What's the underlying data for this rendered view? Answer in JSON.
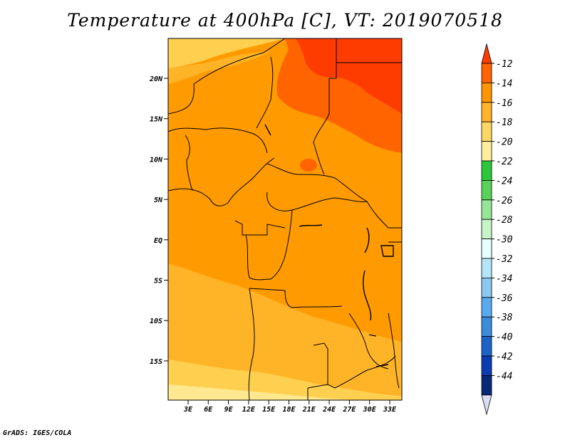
{
  "title": "Temperature at 400hPa [C], VT: 2019070518",
  "credit": "GrADS: IGES/COLA",
  "map": {
    "variable": "Temperature",
    "level": "400hPa",
    "units": "C",
    "valid_time": "2019070518",
    "lon_ticks": [
      "3E",
      "6E",
      "9E",
      "12E",
      "15E",
      "18E",
      "21E",
      "24E",
      "27E",
      "30E",
      "33E"
    ],
    "lat_ticks": [
      "20N",
      "15N",
      "10N",
      "5N",
      "EQ",
      "5S",
      "10S",
      "15S"
    ]
  },
  "colorbar": {
    "labels": [
      "-12",
      "-14",
      "-16",
      "-18",
      "-20",
      "-22",
      "-24",
      "-26",
      "-28",
      "-30",
      "-32",
      "-34",
      "-36",
      "-38",
      "-40",
      "-42",
      "-44"
    ],
    "colors": [
      "#ff3c00",
      "#ff6400",
      "#ff9600",
      "#ffb428",
      "#ffd864",
      "#ffef9c",
      "#2cc83c",
      "#5ad25a",
      "#96e696",
      "#c8f5c8",
      "#e6ffff",
      "#b4e6fa",
      "#8cc8f0",
      "#5aaaf0",
      "#3c8cdc",
      "#1e64c8",
      "#0a3cb4",
      "#082878",
      "#dcdcf5"
    ]
  },
  "fields": {
    "hot_zone_color": "#ff4600",
    "core_color": "#ff3c00",
    "warm_color": "#ff9b00",
    "mid_color": "#ffb428",
    "cool_color": "#ffd050",
    "edge_color": "#ffe890"
  }
}
